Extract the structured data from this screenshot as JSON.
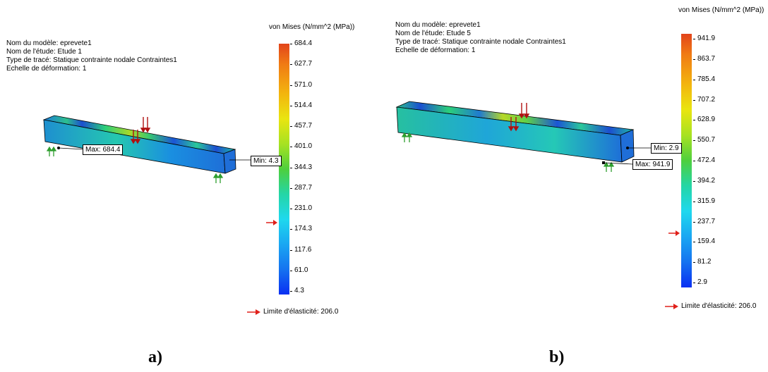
{
  "panel_a": {
    "info": {
      "model": "Nom du modèle: eprevete1",
      "study": "Nom de l'étude: Etude 1",
      "plot_type": "Type de tracé: Statique contrainte nodale Contraintes1",
      "deformation": "Echelle de déformation: 1"
    },
    "legend_title": "von Mises (N/mm^2 (MPa))",
    "ticks": [
      "684.4",
      "627.7",
      "571.0",
      "514.4",
      "457.7",
      "401.0",
      "344.3",
      "287.7",
      "231.0",
      "174.3",
      "117.6",
      "61.0",
      "4.3"
    ],
    "max_label": "Max: 684.4",
    "min_label": "Min: 4.3",
    "yield_label": "Limite d'élasticité: 206.0",
    "panel_label": "a)"
  },
  "panel_b": {
    "info": {
      "model": "Nom du modèle: eprevete1",
      "study": "Nom de l'étude: Etude 5",
      "plot_type": "Type de tracé: Statique contrainte nodale Contraintes1",
      "deformation": "Echelle de déformation: 1"
    },
    "legend_title": "von Mises (N/mm^2 (MPa))",
    "ticks": [
      "941.9",
      "863.7",
      "785.4",
      "707.2",
      "628.9",
      "550.7",
      "472.4",
      "394.2",
      "315.9",
      "237.7",
      "159.4",
      "81.2",
      "2.9"
    ],
    "max_label": "Max: 941.9",
    "min_label": "Min: 2.9",
    "yield_label": "Limite d'élasticité: 206.0",
    "panel_label": "b)"
  },
  "colors": {
    "yield_arrow": "#e0201a",
    "load_arrow": "#b01010",
    "support_arrow": "#2e9e2e"
  },
  "icons": {
    "yield_marker": "red-right-arrow-icon",
    "load": "red-down-arrow-icon",
    "support": "green-up-arrow-icon"
  }
}
